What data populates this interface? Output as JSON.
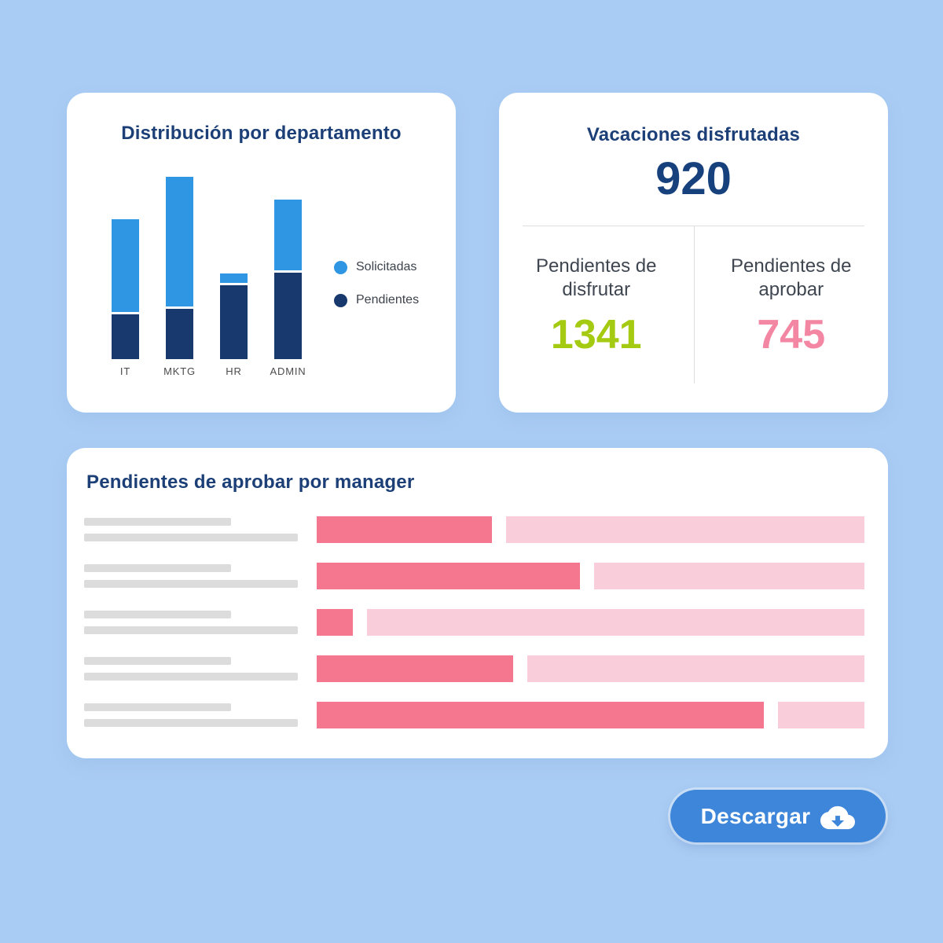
{
  "page": {
    "background": "#a9ccf4"
  },
  "dept_card": {
    "title": "Distribución por departamento",
    "legend": [
      {
        "label": "Solicitadas",
        "color": "#2f96e3"
      },
      {
        "label": "Pendientes",
        "color": "#17396e"
      }
    ],
    "chart_data": {
      "type": "bar",
      "orientation": "vertical",
      "stacked": true,
      "categories": [
        "IT",
        "MKTG",
        "HR",
        "ADMIN"
      ],
      "series": [
        {
          "name": "Solicitadas",
          "color": "#2f96e3",
          "values": [
            118,
            165,
            12,
            90
          ]
        },
        {
          "name": "Pendientes",
          "color": "#17396e",
          "values": [
            57,
            64,
            94,
            110
          ]
        }
      ],
      "value_unit": "px-estimated (no axis labels shown)",
      "grid": false,
      "legend_position": "right"
    }
  },
  "summary_card": {
    "title": "Vacaciones disfrutadas",
    "total": "920",
    "total_color": "#17417d",
    "stats": [
      {
        "label": "Pendientes de disfrutar",
        "value": "1341",
        "color": "#a5ca12"
      },
      {
        "label": "Pendientes de aprobar",
        "value": "745",
        "color": "#f386a2"
      }
    ]
  },
  "managers_card": {
    "title": "Pendientes de aprobar por manager",
    "label_placeholder_widths": [
      187,
      272
    ],
    "chart_data": {
      "type": "bar",
      "orientation": "horizontal",
      "stacked": true,
      "colors": {
        "filled": "#f4768f",
        "remaining": "#f9cdda"
      },
      "rows": [
        {
          "filled_pct": 32.0,
          "remaining_pct": 68.0
        },
        {
          "filled_pct": 48.0,
          "remaining_pct": 52.0
        },
        {
          "filled_pct": 6.6,
          "remaining_pct": 93.4
        },
        {
          "filled_pct": 35.8,
          "remaining_pct": 64.2
        },
        {
          "filled_pct": 81.7,
          "remaining_pct": 18.3
        }
      ]
    }
  },
  "download_button": {
    "label": "Descargar",
    "icon": "cloud-download-icon",
    "color": "#3e86da"
  }
}
